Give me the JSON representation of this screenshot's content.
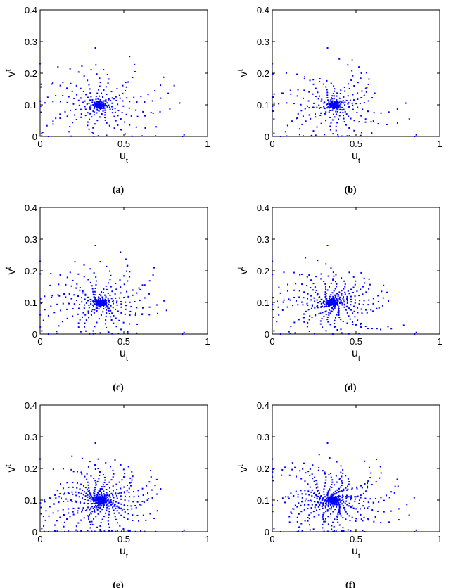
{
  "chart_data": [
    {
      "type": "scatter",
      "caption": "(a)",
      "xlabel": "u",
      "xlabel_sub": "t",
      "ylabel": "v",
      "ylabel_sub": "t",
      "xlim": [
        0,
        1
      ],
      "ylim": [
        0,
        0.4
      ],
      "xticks": [
        "0",
        "0.5",
        "1"
      ],
      "yticks": [
        "0",
        "0.1",
        "0.2",
        "0.3",
        "0.4"
      ],
      "grid": false,
      "marker_color": "#0000ff",
      "attractor": [
        0.36,
        0.1
      ],
      "arms": 21,
      "points_per_arm": 13,
      "spiral_turns": 0.55,
      "outliers": [
        [
          0.0,
          0.23
        ],
        [
          0.01,
          0.01
        ],
        [
          0.05,
          0.0
        ],
        [
          0.86,
          0.005
        ],
        [
          0.85,
          0.0
        ],
        [
          0.33,
          0.28
        ]
      ]
    },
    {
      "type": "scatter",
      "caption": "(b)",
      "xlabel": "u",
      "xlabel_sub": "t",
      "ylabel": "v",
      "ylabel_sub": "t",
      "xlim": [
        0,
        1
      ],
      "ylim": [
        0,
        0.4
      ],
      "xticks": [
        "0",
        "0.5",
        "1"
      ],
      "yticks": [
        "0",
        "0.1",
        "0.2",
        "0.3",
        "0.4"
      ],
      "grid": false,
      "marker_color": "#0000ff",
      "attractor": [
        0.37,
        0.1
      ],
      "arms": 21,
      "points_per_arm": 14,
      "spiral_turns": 0.65,
      "outliers": [
        [
          0.0,
          0.23
        ],
        [
          0.01,
          0.01
        ],
        [
          0.05,
          0.0
        ],
        [
          0.86,
          0.005
        ],
        [
          0.85,
          0.0
        ],
        [
          0.33,
          0.28
        ]
      ]
    },
    {
      "type": "scatter",
      "caption": "(c)",
      "xlabel": "u",
      "xlabel_sub": "t",
      "ylabel": "v",
      "ylabel_sub": "t",
      "xlim": [
        0,
        1
      ],
      "ylim": [
        0,
        0.4
      ],
      "xticks": [
        "0",
        "0.5",
        "1"
      ],
      "yticks": [
        "0",
        "0.1",
        "0.2",
        "0.3",
        "0.4"
      ],
      "grid": false,
      "marker_color": "#0000ff",
      "attractor": [
        0.36,
        0.1
      ],
      "arms": 24,
      "points_per_arm": 14,
      "spiral_turns": 0.5,
      "outliers": [
        [
          0.0,
          0.23
        ],
        [
          0.01,
          0.01
        ],
        [
          0.05,
          0.0
        ],
        [
          0.86,
          0.005
        ],
        [
          0.85,
          0.0
        ],
        [
          0.33,
          0.28
        ]
      ]
    },
    {
      "type": "scatter",
      "caption": "(d)",
      "xlabel": "u",
      "xlabel_sub": "t",
      "ylabel": "v",
      "ylabel_sub": "t",
      "xlim": [
        0,
        1
      ],
      "ylim": [
        0,
        0.4
      ],
      "xticks": [
        "0",
        "0.5",
        "1"
      ],
      "yticks": [
        "0",
        "0.1",
        "0.2",
        "0.3",
        "0.4"
      ],
      "grid": false,
      "marker_color": "#0000ff",
      "attractor": [
        0.36,
        0.1
      ],
      "arms": 26,
      "points_per_arm": 16,
      "spiral_turns": 0.75,
      "outliers": [
        [
          0.0,
          0.23
        ],
        [
          0.01,
          0.01
        ],
        [
          0.05,
          0.0
        ],
        [
          0.86,
          0.005
        ],
        [
          0.85,
          0.0
        ],
        [
          0.33,
          0.28
        ]
      ]
    },
    {
      "type": "scatter",
      "caption": "(e)",
      "xlabel": "u",
      "xlabel_sub": "t",
      "ylabel": "v",
      "ylabel_sub": "t",
      "xlim": [
        0,
        1
      ],
      "ylim": [
        0,
        0.4
      ],
      "xticks": [
        "0",
        "0.5",
        "1"
      ],
      "yticks": [
        "0",
        "0.1",
        "0.2",
        "0.3",
        "0.4"
      ],
      "grid": false,
      "marker_color": "#0000ff",
      "attractor": [
        0.36,
        0.1
      ],
      "arms": 30,
      "points_per_arm": 18,
      "spiral_turns": 0.7,
      "outliers": [
        [
          0.0,
          0.23
        ],
        [
          0.01,
          0.01
        ],
        [
          0.05,
          0.0
        ],
        [
          0.86,
          0.005
        ],
        [
          0.85,
          0.0
        ],
        [
          0.33,
          0.28
        ]
      ]
    },
    {
      "type": "scatter",
      "caption": "(f)",
      "xlabel": "u",
      "xlabel_sub": "t",
      "ylabel": "v",
      "ylabel_sub": "t",
      "xlim": [
        0,
        1
      ],
      "ylim": [
        0,
        0.4
      ],
      "xticks": [
        "0",
        "0.5",
        "1"
      ],
      "yticks": [
        "0",
        "0.1",
        "0.2",
        "0.3",
        "0.4"
      ],
      "grid": false,
      "marker_color": "#0000ff",
      "attractor": [
        0.36,
        0.1
      ],
      "arms": 30,
      "points_per_arm": 18,
      "spiral_turns": 0.8,
      "outliers": [
        [
          0.0,
          0.23
        ],
        [
          0.01,
          0.01
        ],
        [
          0.05,
          0.0
        ],
        [
          0.86,
          0.005
        ],
        [
          0.85,
          0.0
        ],
        [
          0.33,
          0.28
        ]
      ]
    }
  ]
}
